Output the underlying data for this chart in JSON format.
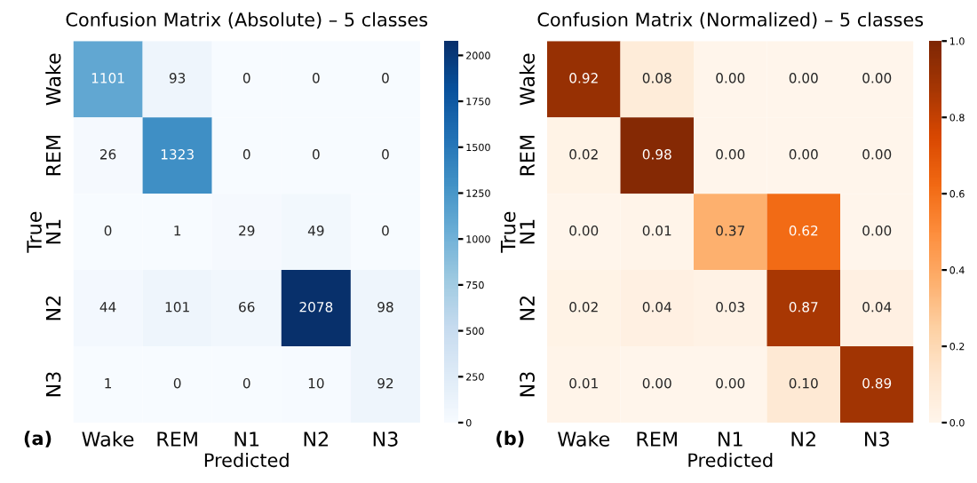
{
  "chart_data": [
    {
      "type": "heatmap",
      "title": "Confusion Matrix (Absolute) – 5 classes",
      "xlabel": "Predicted",
      "ylabel": "True",
      "annotations": [
        "(a)"
      ],
      "categories": [
        "Wake",
        "REM",
        "N1",
        "N2",
        "N3"
      ],
      "y_categories": [
        "Wake",
        "REM",
        "N1",
        "N2",
        "N3"
      ],
      "cells": [
        [
          1101,
          93,
          0,
          0,
          0
        ],
        [
          26,
          1323,
          0,
          0,
          0
        ],
        [
          0,
          1,
          29,
          49,
          0
        ],
        [
          44,
          101,
          66,
          2078,
          98
        ],
        [
          1,
          0,
          0,
          10,
          92
        ]
      ],
      "data_labels": true,
      "clim": [
        0,
        2078
      ],
      "cticks": [
        0,
        250,
        500,
        750,
        1000,
        1250,
        1500,
        1750,
        2000
      ]
    },
    {
      "type": "heatmap",
      "title": "Confusion Matrix (Normalized) – 5 classes",
      "xlabel": "Predicted",
      "ylabel": "True",
      "annotations": [
        "(b)"
      ],
      "categories": [
        "Wake",
        "REM",
        "N1",
        "N2",
        "N3"
      ],
      "y_categories": [
        "Wake",
        "REM",
        "N1",
        "N2",
        "N3"
      ],
      "cells": [
        [
          0.92,
          0.08,
          0,
          0,
          0
        ],
        [
          0.02,
          0.98,
          0,
          0,
          0
        ],
        [
          0,
          0.01,
          0.37,
          0.62,
          0
        ],
        [
          0.02,
          0.04,
          0.03,
          0.87,
          0.04
        ],
        [
          0.01,
          0,
          0,
          0.1,
          0.89
        ]
      ],
      "cell_labels": [
        [
          "0.92",
          "0.08",
          "0.00",
          "0.00",
          "0.00"
        ],
        [
          "0.02",
          "0.98",
          "0.00",
          "0.00",
          "0.00"
        ],
        [
          "0.00",
          "0.01",
          "0.37",
          "0.62",
          "0.00"
        ],
        [
          "0.02",
          "0.04",
          "0.03",
          "0.87",
          "0.04"
        ],
        [
          "0.01",
          "0.00",
          "0.00",
          "0.10",
          "0.89"
        ]
      ],
      "clim": [
        0,
        1.0
      ],
      "cticks": [
        {
          "value": 0,
          "label": "0.0"
        },
        {
          "value": 0.2,
          "label": "0.2"
        },
        {
          "value": 0.4,
          "label": "0.4"
        },
        {
          "value": 0.6,
          "label": "0.6"
        },
        {
          "value": 0.8,
          "label": "0.8"
        },
        {
          "value": 1.0,
          "label": "1.0"
        }
      ]
    }
  ]
}
